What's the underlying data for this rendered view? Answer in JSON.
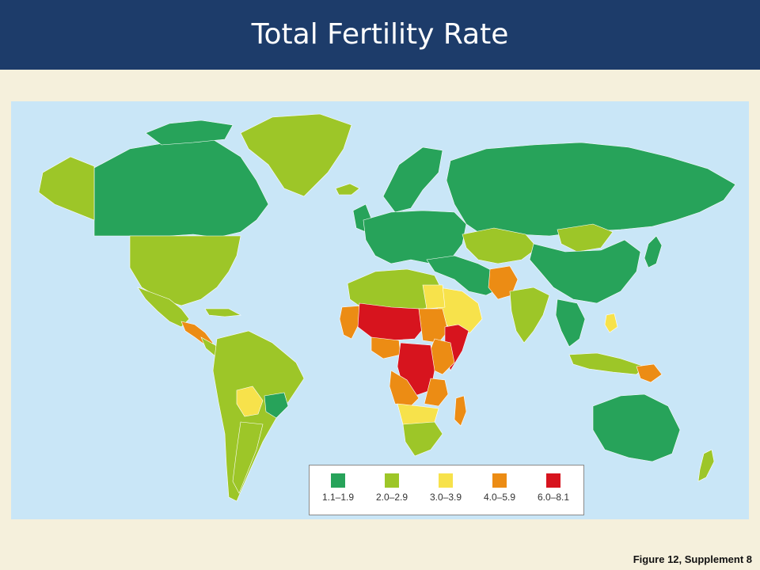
{
  "header": {
    "title": "Total Fertility Rate"
  },
  "legend": {
    "items": [
      {
        "label": "1.1–1.9",
        "color": "#27a35a"
      },
      {
        "label": "2.0–2.9",
        "color": "#9dc628"
      },
      {
        "label": "3.0–3.9",
        "color": "#f7e24b"
      },
      {
        "label": "4.0–5.9",
        "color": "#ec8c14"
      },
      {
        "label": "6.0–8.1",
        "color": "#d7141e"
      }
    ]
  },
  "caption": "Figure 12, Supplement 8"
}
